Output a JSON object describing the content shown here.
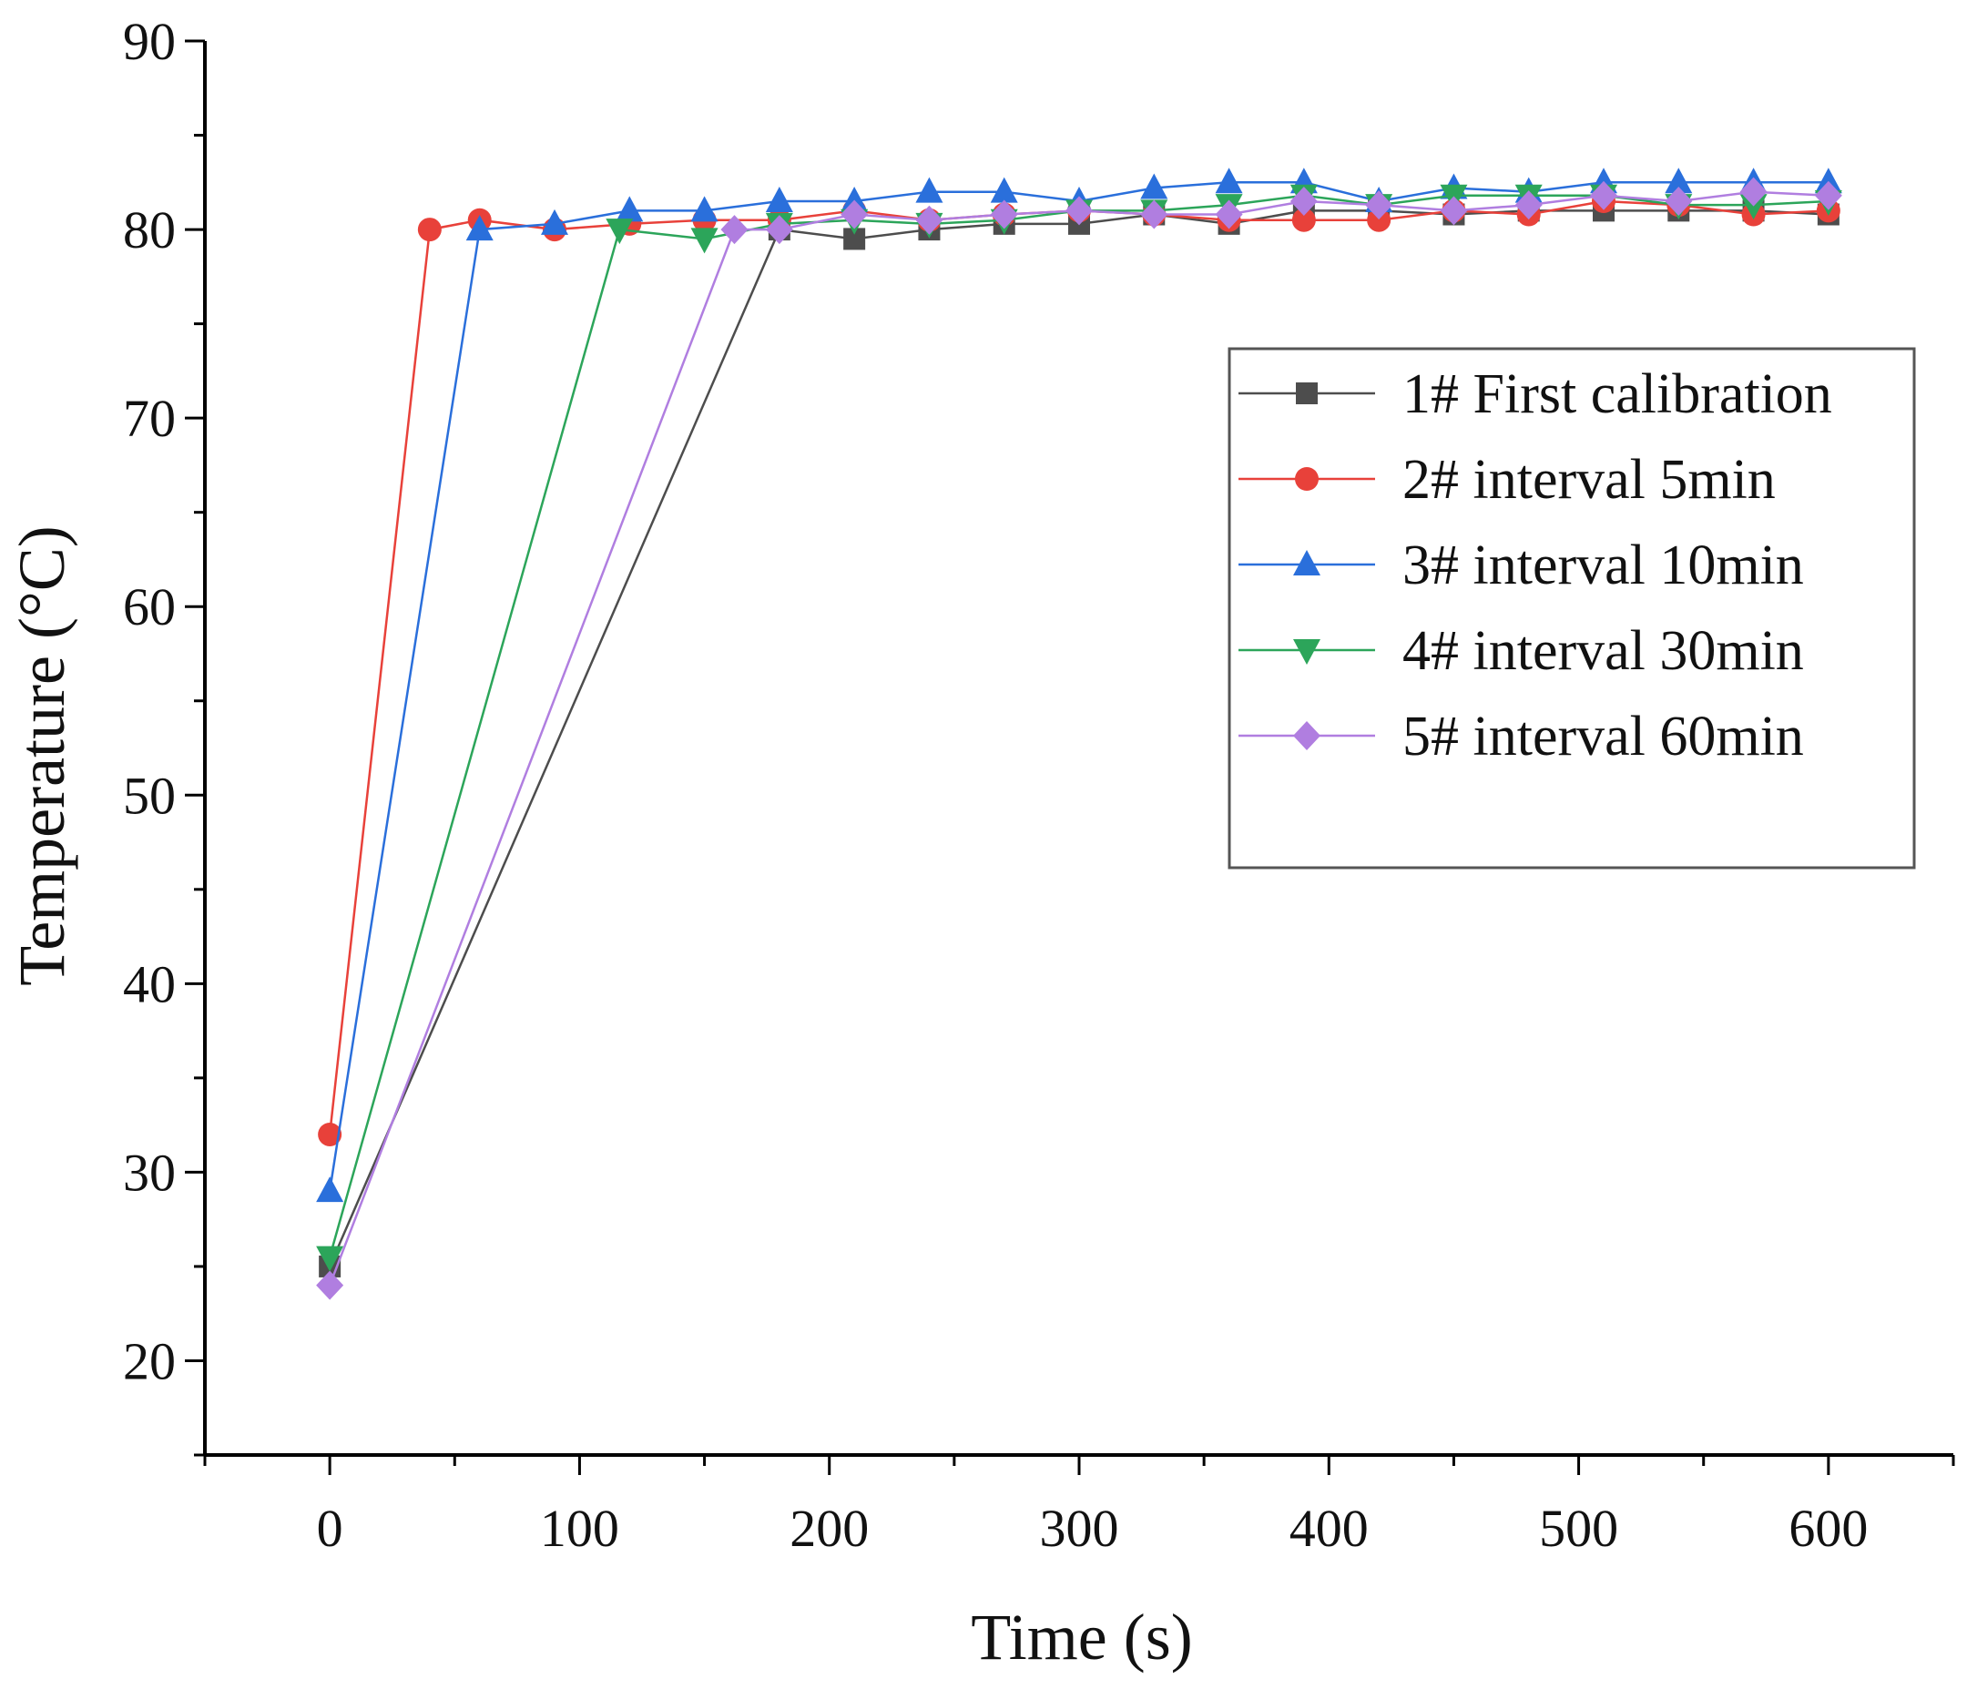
{
  "chart_data": {
    "type": "line",
    "title": "",
    "xlabel": "Time (s)",
    "ylabel": "Temperature (°C)",
    "xlim": [
      -50,
      650
    ],
    "ylim": [
      15,
      90
    ],
    "xticks": [
      0,
      100,
      200,
      300,
      400,
      500,
      600
    ],
    "yticks": [
      20,
      30,
      40,
      50,
      60,
      70,
      80,
      90
    ],
    "grid": false,
    "legend_position": "top-right",
    "series": [
      {
        "name": "1# First calibration",
        "color": "#4d4d4d",
        "marker": "square",
        "points": [
          [
            0,
            25
          ],
          [
            180,
            80.0
          ],
          [
            210,
            79.5
          ],
          [
            240,
            80.0
          ],
          [
            270,
            80.3
          ],
          [
            300,
            80.3
          ],
          [
            330,
            80.8
          ],
          [
            360,
            80.3
          ],
          [
            390,
            81.0
          ],
          [
            420,
            81.0
          ],
          [
            450,
            80.8
          ],
          [
            480,
            81.0
          ],
          [
            510,
            81.0
          ],
          [
            540,
            81.0
          ],
          [
            570,
            81.0
          ],
          [
            600,
            80.8
          ]
        ]
      },
      {
        "name": "2# interval 5min",
        "color": "#e8413a",
        "marker": "circle",
        "points": [
          [
            0,
            32
          ],
          [
            40,
            80.0
          ],
          [
            60,
            80.5
          ],
          [
            90,
            80.0
          ],
          [
            120,
            80.3
          ],
          [
            150,
            80.5
          ],
          [
            180,
            80.5
          ],
          [
            210,
            81.0
          ],
          [
            240,
            80.5
          ],
          [
            270,
            80.8
          ],
          [
            300,
            81.0
          ],
          [
            330,
            80.8
          ],
          [
            360,
            80.5
          ],
          [
            390,
            80.5
          ],
          [
            420,
            80.5
          ],
          [
            450,
            81.0
          ],
          [
            480,
            80.8
          ],
          [
            510,
            81.5
          ],
          [
            540,
            81.3
          ],
          [
            570,
            80.8
          ],
          [
            600,
            81.0
          ]
        ]
      },
      {
        "name": "3# interval 10min",
        "color": "#2a6fdb",
        "marker": "triangle-up",
        "points": [
          [
            0,
            29
          ],
          [
            60,
            80.0
          ],
          [
            90,
            80.3
          ],
          [
            120,
            81.0
          ],
          [
            150,
            81.0
          ],
          [
            180,
            81.5
          ],
          [
            210,
            81.5
          ],
          [
            240,
            82.0
          ],
          [
            270,
            82.0
          ],
          [
            300,
            81.5
          ],
          [
            330,
            82.2
          ],
          [
            360,
            82.5
          ],
          [
            390,
            82.5
          ],
          [
            420,
            81.5
          ],
          [
            450,
            82.2
          ],
          [
            480,
            82.0
          ],
          [
            510,
            82.5
          ],
          [
            540,
            82.5
          ],
          [
            570,
            82.5
          ],
          [
            600,
            82.5
          ]
        ]
      },
      {
        "name": "4# interval 30min",
        "color": "#2ca55a",
        "marker": "triangle-down",
        "points": [
          [
            0,
            25.5
          ],
          [
            116,
            80.0
          ],
          [
            150,
            79.5
          ],
          [
            180,
            80.3
          ],
          [
            210,
            80.5
          ],
          [
            240,
            80.3
          ],
          [
            270,
            80.5
          ],
          [
            300,
            81.0
          ],
          [
            330,
            81.0
          ],
          [
            360,
            81.3
          ],
          [
            390,
            81.8
          ],
          [
            420,
            81.3
          ],
          [
            450,
            81.8
          ],
          [
            480,
            81.8
          ],
          [
            510,
            81.8
          ],
          [
            540,
            81.3
          ],
          [
            570,
            81.3
          ],
          [
            600,
            81.5
          ]
        ]
      },
      {
        "name": "5# interval 60min",
        "color": "#b07ee0",
        "marker": "diamond",
        "points": [
          [
            0,
            24
          ],
          [
            162,
            80.0
          ],
          [
            180,
            80.0
          ],
          [
            210,
            80.8
          ],
          [
            240,
            80.5
          ],
          [
            270,
            80.8
          ],
          [
            300,
            81.0
          ],
          [
            330,
            80.8
          ],
          [
            360,
            80.8
          ],
          [
            390,
            81.5
          ],
          [
            420,
            81.3
          ],
          [
            450,
            81.0
          ],
          [
            480,
            81.3
          ],
          [
            510,
            81.8
          ],
          [
            540,
            81.5
          ],
          [
            570,
            82.0
          ],
          [
            600,
            81.8
          ]
        ]
      }
    ]
  }
}
